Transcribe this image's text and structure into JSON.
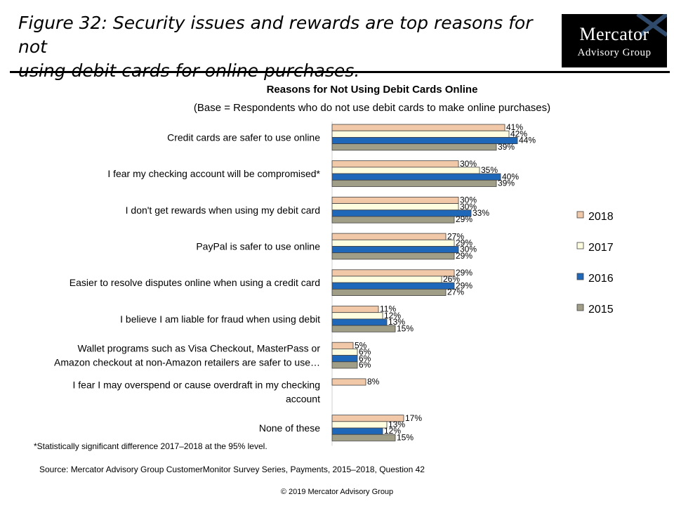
{
  "figure": {
    "title_line1": "Figure 32: Security issues and rewards are top reasons for not",
    "title_line2": "using debit cards for online purchases."
  },
  "logo": {
    "line1": "Mercator",
    "line2": "Advisory Group"
  },
  "chart_data": {
    "type": "bar",
    "orientation": "horizontal",
    "title": "Reasons for Not Using Debit Cards Online",
    "subtitle": "(Base = Respondents who do not use debit cards to make online purchases)",
    "categories": [
      [
        "Credit cards are safer to use online"
      ],
      [
        "I fear my checking account will be compromised*"
      ],
      [
        "I don't get rewards when using my debit card"
      ],
      [
        "PayPal is safer to use online"
      ],
      [
        "Easier to resolve disputes online when using a credit card"
      ],
      [
        "I believe I am liable for fraud when using debit"
      ],
      [
        "Wallet programs such as Visa Checkout, MasterPass or",
        "Amazon checkout at non-Amazon retailers are safer to use…"
      ],
      [
        "I fear I may overspend or cause overdraft in my checking",
        "account"
      ],
      [
        "None of these"
      ]
    ],
    "series": [
      {
        "name": "2018",
        "color": "#f2c9a8",
        "values": [
          41,
          30,
          30,
          27,
          29,
          11,
          5,
          8,
          17
        ]
      },
      {
        "name": "2017",
        "color": "#fffde0",
        "values": [
          42,
          35,
          30,
          29,
          26,
          12,
          6,
          null,
          13
        ]
      },
      {
        "name": "2016",
        "color": "#1f67b8",
        "values": [
          44,
          40,
          33,
          30,
          29,
          13,
          6,
          null,
          12
        ]
      },
      {
        "name": "2015",
        "color": "#a19e88",
        "values": [
          39,
          39,
          29,
          29,
          27,
          15,
          6,
          null,
          15
        ]
      }
    ],
    "value_suffix": "%",
    "legend_position": "right",
    "grid": false
  },
  "footnote": "*Statistically significant difference 2017–2018 at the 95% level.",
  "source": "Source: Mercator Advisory Group CustomerMonitor Survey Series, Payments, 2015–2018,  Question 42",
  "copyright": "© 2019 Mercator Advisory Group"
}
